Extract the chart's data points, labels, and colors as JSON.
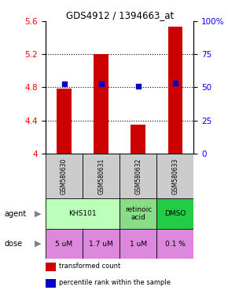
{
  "title": "GDS4912 / 1394663_at",
  "samples": [
    "GSM580630",
    "GSM580631",
    "GSM580632",
    "GSM580633"
  ],
  "bar_values": [
    4.78,
    5.2,
    4.35,
    5.53
  ],
  "bar_baseline": 4.0,
  "percentile_values": [
    4.84,
    4.84,
    4.81,
    4.85
  ],
  "ylim_left": [
    4.0,
    5.6
  ],
  "ylim_right": [
    0,
    100
  ],
  "yticks_left": [
    4.0,
    4.4,
    4.8,
    5.2,
    5.6
  ],
  "ytick_labels_left": [
    "4",
    "4.4",
    "4.8",
    "5.2",
    "5.6"
  ],
  "yticks_right": [
    0,
    25,
    50,
    75,
    100
  ],
  "ytick_labels_right": [
    "0",
    "25",
    "50",
    "75",
    "100%"
  ],
  "grid_yticks": [
    4.4,
    4.8,
    5.2
  ],
  "bar_color": "#cc0000",
  "dot_color": "#0000cc",
  "agent_spans": [
    [
      0,
      2,
      "KHS101",
      "#bbffbb"
    ],
    [
      2,
      3,
      "retinoic\nacid",
      "#88dd88"
    ],
    [
      3,
      4,
      "DMSO",
      "#22cc44"
    ]
  ],
  "dose_row": [
    "5 uM",
    "1.7 uM",
    "1 uM",
    "0.1 %"
  ],
  "dose_color": "#dd88dd",
  "sample_bg": "#cccccc",
  "legend_items": [
    {
      "color": "#cc0000",
      "label": "transformed count"
    },
    {
      "color": "#0000cc",
      "label": "percentile rank within the sample"
    }
  ]
}
